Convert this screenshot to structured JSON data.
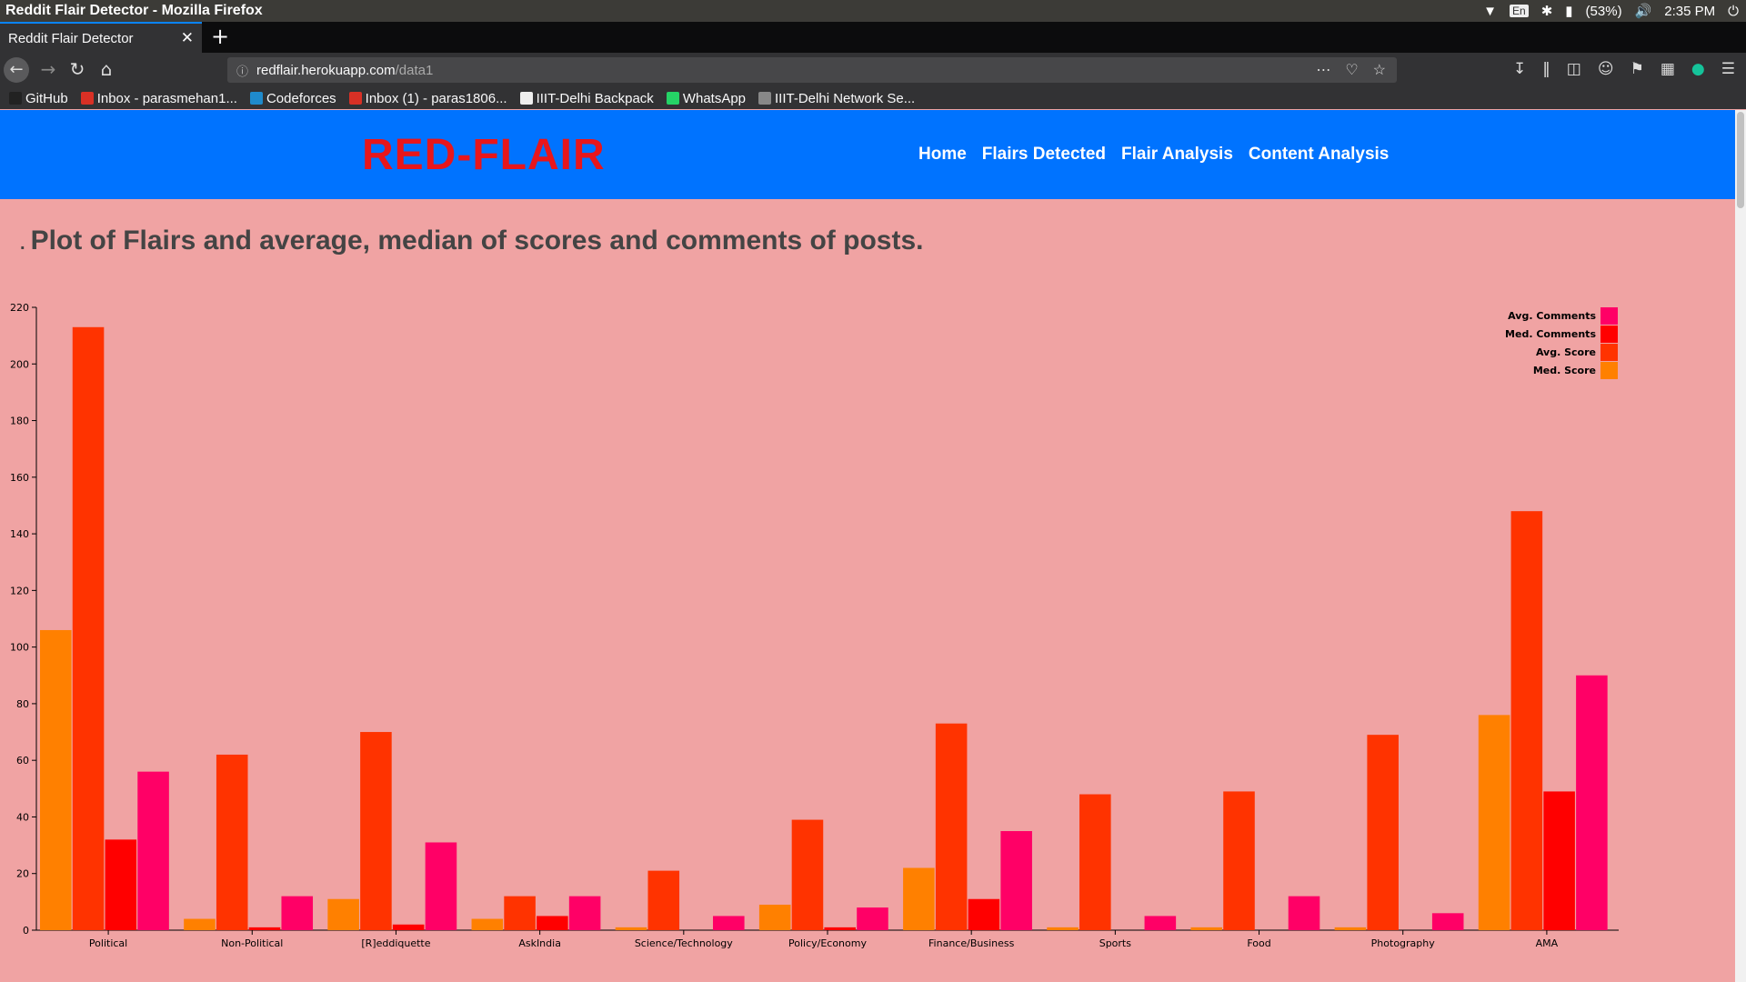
{
  "os": {
    "window_title": "Reddit Flair Detector - Mozilla Firefox",
    "battery": "(53%)",
    "time": "2:35 PM",
    "keyboard": "En"
  },
  "browser": {
    "tab_title": "Reddit Flair Detector",
    "url_domain": "redflair.herokuapp.com",
    "url_path": "/data1",
    "bookmarks": [
      {
        "label": "GitHub",
        "icon": "github-icon",
        "color": "#222222"
      },
      {
        "label": "Inbox - parasmehan1...",
        "icon": "gmail-icon",
        "color": "#d93025"
      },
      {
        "label": "Codeforces",
        "icon": "codeforces-icon",
        "color": "#1f8acb"
      },
      {
        "label": "Inbox (1) - paras1806...",
        "icon": "gmail-icon",
        "color": "#d93025"
      },
      {
        "label": "IIIT-Delhi Backpack",
        "icon": "page-icon",
        "color": "#eeeeee"
      },
      {
        "label": "WhatsApp",
        "icon": "whatsapp-icon",
        "color": "#25d366"
      },
      {
        "label": "IIIT-Delhi Network Se...",
        "icon": "globe-icon",
        "color": "#888888"
      }
    ]
  },
  "site": {
    "logo": "RED-FLAIR",
    "nav": [
      "Home",
      "Flairs Detected",
      "Flair Analysis",
      "Content Analysis"
    ],
    "header_color": "#0073ff",
    "logo_color": "#e8161b"
  },
  "main": {
    "bullet": ".",
    "heading": "Plot of Flairs and average, median of scores and comments of posts."
  },
  "chart_data": {
    "type": "bar",
    "title": "",
    "xlabel": "",
    "ylabel": "",
    "ylim": [
      0,
      220
    ],
    "yticks": [
      0,
      20,
      40,
      60,
      80,
      100,
      120,
      140,
      160,
      180,
      200,
      220
    ],
    "grid": false,
    "legend_position": "top-right",
    "categories": [
      "Political",
      "Non-Political",
      "[R]eddiquette",
      "AskIndia",
      "Science/Technology",
      "Policy/Economy",
      "Finance/Business",
      "Sports",
      "Food",
      "Photography",
      "AMA"
    ],
    "series": [
      {
        "name": "Med. Score",
        "color": "#ff8000",
        "values": [
          106,
          4,
          11,
          4,
          1,
          9,
          22,
          1,
          1,
          1,
          76
        ]
      },
      {
        "name": "Avg. Score",
        "color": "#ff3300",
        "values": [
          213,
          62,
          70,
          12,
          21,
          39,
          73,
          48,
          49,
          69,
          148
        ]
      },
      {
        "name": "Med. Comments",
        "color": "#ff0000",
        "values": [
          32,
          1,
          2,
          5,
          0,
          1,
          11,
          0,
          0,
          0,
          49
        ]
      },
      {
        "name": "Avg. Comments",
        "color": "#ff0066",
        "values": [
          56,
          12,
          31,
          12,
          5,
          8,
          35,
          5,
          12,
          6,
          90
        ]
      }
    ],
    "legend_order": [
      "Avg. Comments",
      "Med. Comments",
      "Avg. Score",
      "Med. Score"
    ]
  }
}
